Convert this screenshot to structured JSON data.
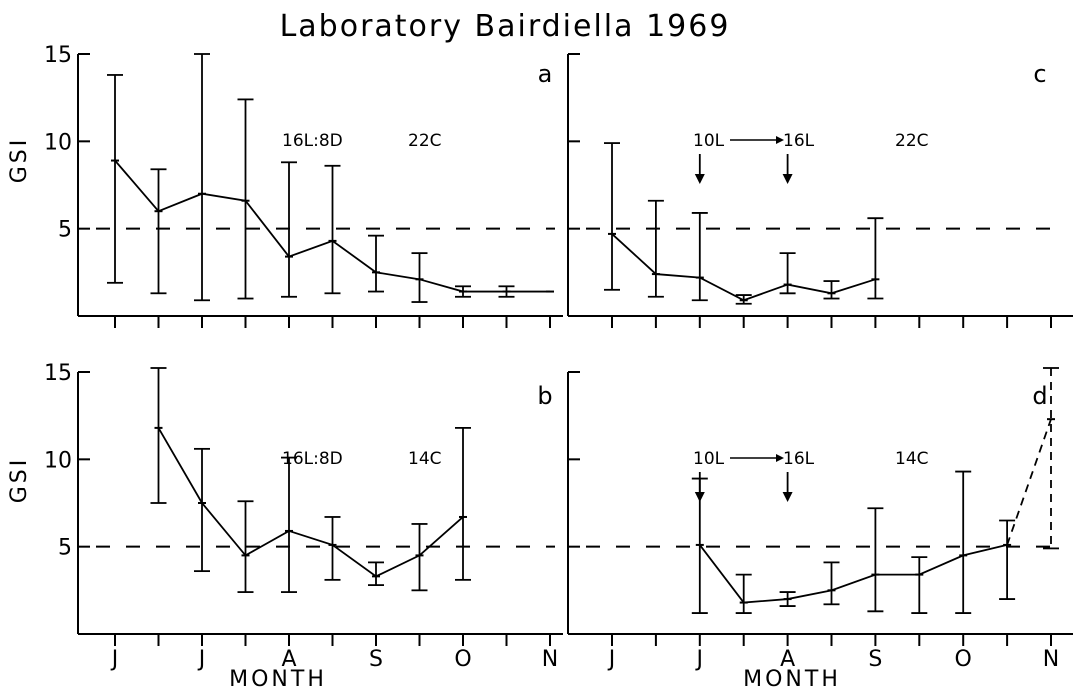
{
  "figure": {
    "title": "Laboratory Bairdiella 1969",
    "y_label": "GSI",
    "x_label": "MONTH",
    "y_ticks": [
      "5",
      "10",
      "15"
    ],
    "x_ticks": [
      "J",
      "J",
      "A",
      "S",
      "O",
      "N"
    ]
  },
  "chart_data": [
    {
      "type": "line",
      "panel": "a",
      "annotations": [
        "16L:8D",
        "22C"
      ],
      "xlim": [
        0,
        10
      ],
      "ylim": [
        0,
        15
      ],
      "reference_line": 5,
      "x_ticks": [
        "J",
        "J",
        "A",
        "S",
        "O",
        "N"
      ],
      "series": [
        {
          "x": [
            0,
            1,
            2,
            3,
            4,
            5,
            6,
            7,
            8,
            9,
            10
          ],
          "y": [
            8.9,
            6.0,
            7.0,
            6.6,
            3.4,
            4.3,
            2.5,
            2.1,
            1.4,
            1.4,
            1.4
          ],
          "y_low": [
            1.9,
            1.3,
            0.9,
            1.0,
            1.1,
            1.3,
            1.4,
            0.8,
            1.1,
            1.1,
            1.4
          ],
          "y_high": [
            13.8,
            8.4,
            15.0,
            12.4,
            8.8,
            8.6,
            4.6,
            3.6,
            1.7,
            1.7,
            1.4
          ]
        }
      ]
    },
    {
      "type": "line",
      "panel": "b",
      "annotations": [
        "16L:8D",
        "14C"
      ],
      "xlim": [
        0,
        10
      ],
      "ylim": [
        0,
        15
      ],
      "reference_line": 5,
      "x_ticks": [
        "J",
        "J",
        "A",
        "S",
        "O",
        "N"
      ],
      "series": [
        {
          "x": [
            1,
            2,
            3,
            4,
            5,
            6,
            7,
            8
          ],
          "y": [
            11.8,
            7.5,
            4.5,
            5.9,
            5.1,
            3.3,
            4.5,
            6.7
          ],
          "y_low": [
            7.5,
            3.6,
            2.4,
            2.4,
            3.1,
            2.8,
            2.5,
            3.1
          ],
          "y_high": [
            16.0,
            10.6,
            7.6,
            10.1,
            6.7,
            4.1,
            6.3,
            11.8
          ]
        }
      ]
    },
    {
      "type": "line",
      "panel": "c",
      "annotations": [
        "10L",
        "16L",
        "22C"
      ],
      "arrow_positions": [
        2,
        4
      ],
      "xlim": [
        0,
        10
      ],
      "ylim": [
        0,
        15
      ],
      "reference_line": 5,
      "x_ticks": [
        "J",
        "J",
        "A",
        "S",
        "O",
        "N"
      ],
      "series": [
        {
          "x": [
            0,
            1,
            2,
            3,
            4,
            5,
            6
          ],
          "y": [
            4.7,
            2.4,
            2.2,
            0.9,
            1.8,
            1.3,
            2.1
          ],
          "y_low": [
            1.5,
            1.1,
            0.9,
            0.7,
            1.3,
            1.0,
            1.0
          ],
          "y_high": [
            9.9,
            6.6,
            5.9,
            1.2,
            3.6,
            2.0,
            5.6
          ]
        }
      ]
    },
    {
      "type": "line",
      "panel": "d",
      "annotations": [
        "10L",
        "16L",
        "14C"
      ],
      "arrow_positions": [
        2,
        4
      ],
      "xlim": [
        0,
        10
      ],
      "ylim": [
        0,
        15
      ],
      "reference_line": 5,
      "x_ticks": [
        "J",
        "J",
        "A",
        "S",
        "O",
        "N"
      ],
      "series": [
        {
          "x": [
            2,
            3,
            4,
            5,
            6,
            7,
            8,
            9
          ],
          "y": [
            5.1,
            1.8,
            2.0,
            2.5,
            3.4,
            3.4,
            4.5,
            5.1
          ],
          "y_low": [
            1.2,
            1.2,
            1.6,
            1.7,
            1.3,
            1.2,
            1.2,
            2.0
          ],
          "y_high": [
            8.9,
            3.4,
            2.4,
            4.1,
            7.2,
            4.4,
            9.3,
            6.5
          ]
        },
        {
          "style": "dashed",
          "x": [
            9,
            10
          ],
          "y": [
            5.1,
            12.3
          ],
          "y_low": [
            null,
            4.9
          ],
          "y_high": [
            null,
            17.0
          ]
        }
      ]
    }
  ]
}
